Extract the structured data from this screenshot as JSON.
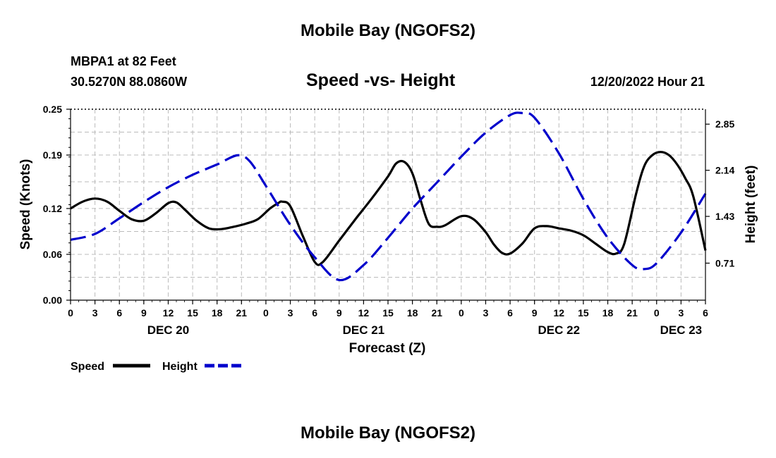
{
  "header": {
    "title": "Mobile Bay (NGOFS2)",
    "station": "MBPA1 at 82 Feet",
    "coords": "30.5270N  88.0860W",
    "chart_title": "Speed -vs- Height",
    "timestamp": "12/20/2022 Hour 21"
  },
  "footer": {
    "title": "Mobile Bay (NGOFS2)"
  },
  "colors": {
    "speed": "#000000",
    "height": "#0000cc",
    "grid": "#bbbbbb"
  },
  "chart_data": {
    "type": "line",
    "title": "Speed -vs- Height",
    "xlabel": "Forecast (Z)",
    "ylabel": "Speed (Knots)",
    "y2label": "Height (feet)",
    "x_unit": "hours since DEC 20 00Z",
    "xlim": [
      0,
      78
    ],
    "ylim": [
      0,
      0.25
    ],
    "y2lim": [
      0.14,
      3.08
    ],
    "x_ticks": [
      0,
      3,
      6,
      9,
      12,
      15,
      18,
      21,
      24,
      27,
      30,
      33,
      36,
      39,
      42,
      45,
      48,
      51,
      54,
      57,
      60,
      63,
      66,
      69,
      72,
      75,
      78
    ],
    "x_tick_labels": [
      "0",
      "3",
      "6",
      "9",
      "12",
      "15",
      "18",
      "21",
      "0",
      "3",
      "6",
      "9",
      "12",
      "15",
      "18",
      "21",
      "0",
      "3",
      "6",
      "9",
      "12",
      "15",
      "18",
      "21",
      "0",
      "3",
      "6"
    ],
    "y_ticks": [
      0.0,
      0.06,
      0.12,
      0.19,
      0.25
    ],
    "y_tick_labels": [
      "0.00",
      "0.06",
      "0.12",
      "0.19",
      "0.25"
    ],
    "y2_ticks": [
      0.71,
      1.43,
      2.14,
      2.85
    ],
    "y2_tick_labels": [
      "0.71",
      "1.43",
      "2.14",
      "2.85"
    ],
    "day_labels": [
      {
        "x": 12,
        "label": "DEC 20"
      },
      {
        "x": 36,
        "label": "DEC 21"
      },
      {
        "x": 60,
        "label": "DEC 22"
      },
      {
        "x": 75,
        "label": "DEC 23"
      }
    ],
    "series": [
      {
        "name": "Speed",
        "axis": "left",
        "style": "solid",
        "x": [
          0,
          1.5,
          3,
          4.5,
          6,
          7.5,
          9,
          10.5,
          12,
          13,
          14,
          15.5,
          17,
          18.5,
          20,
          21.5,
          23,
          24.5,
          25.5,
          26,
          27,
          28.5,
          30,
          31,
          33,
          35,
          37,
          39,
          40,
          41,
          42,
          43,
          44,
          45,
          46,
          48,
          49.5,
          51,
          52,
          53,
          54,
          55.5,
          57,
          58.5,
          60,
          61.5,
          63,
          64.5,
          66,
          67,
          68,
          69.5,
          70.5,
          71.5,
          72.5,
          73.5,
          74.5,
          75.5,
          76.5,
          78
        ],
        "values": [
          0.12,
          0.129,
          0.133,
          0.129,
          0.117,
          0.106,
          0.104,
          0.114,
          0.127,
          0.128,
          0.119,
          0.104,
          0.094,
          0.093,
          0.096,
          0.1,
          0.106,
          0.12,
          0.127,
          0.129,
          0.123,
          0.085,
          0.05,
          0.05,
          0.078,
          0.106,
          0.133,
          0.162,
          0.179,
          0.181,
          0.166,
          0.131,
          0.1,
          0.096,
          0.098,
          0.11,
          0.106,
          0.089,
          0.073,
          0.062,
          0.061,
          0.074,
          0.094,
          0.097,
          0.094,
          0.091,
          0.085,
          0.074,
          0.063,
          0.061,
          0.073,
          0.14,
          0.176,
          0.19,
          0.194,
          0.19,
          0.178,
          0.16,
          0.136,
          0.065
        ]
      },
      {
        "name": "Height",
        "axis": "right",
        "style": "dashed",
        "x": [
          0,
          3,
          6,
          9,
          12,
          15,
          18,
          20.5,
          22,
          24,
          27,
          30,
          33,
          36,
          39,
          42,
          45,
          48,
          51,
          54,
          55.5,
          57,
          60,
          63,
          66,
          69,
          70.5,
          72,
          75,
          78
        ],
        "values": [
          1.07,
          1.16,
          1.4,
          1.65,
          1.88,
          2.07,
          2.23,
          2.37,
          2.28,
          1.9,
          1.3,
          0.8,
          0.45,
          0.68,
          1.1,
          1.55,
          1.95,
          2.35,
          2.72,
          2.99,
          3.02,
          2.95,
          2.4,
          1.7,
          1.1,
          0.68,
          0.62,
          0.71,
          1.18,
          1.78
        ]
      }
    ],
    "legend": {
      "position": "bottom-left",
      "entries": [
        {
          "name": "Speed",
          "style": "solid"
        },
        {
          "name": "Height",
          "style": "dashed"
        }
      ]
    }
  }
}
